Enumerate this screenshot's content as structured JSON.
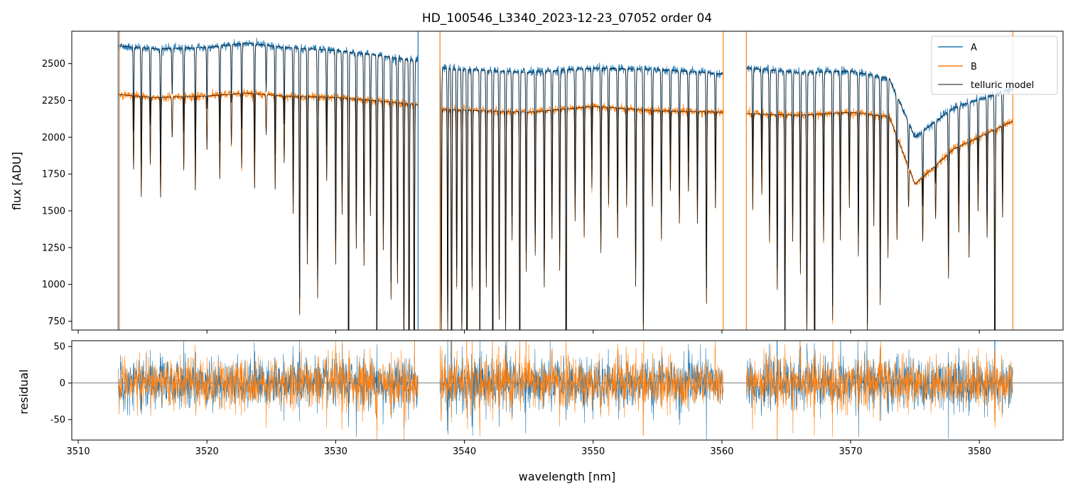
{
  "figure": {
    "title": "HD_100546_L3340_2023-12-23_07052  order 04"
  },
  "colors": {
    "A": "#1f77b4",
    "B": "#ff7f0e",
    "model": "#000000",
    "zero_line": "#333333"
  },
  "chart_data": [
    {
      "type": "line",
      "panel": "top",
      "title": "HD_100546_L3340_2023-12-23_07052  order 04",
      "xlabel": "",
      "ylabel": "flux [ADU]",
      "xlim": [
        3509.5,
        3586.5
      ],
      "ylim": [
        690,
        2720
      ],
      "xticks": [
        3510,
        3520,
        3530,
        3540,
        3550,
        3560,
        3570,
        3580
      ],
      "yticks": [
        750,
        1000,
        1250,
        1500,
        1750,
        2000,
        2250,
        2500
      ],
      "grid": false,
      "legend_position": "top-right",
      "legend": [
        "A",
        "B",
        "telluric model"
      ],
      "segments": [
        [
          3513.1,
          3536.4
        ],
        [
          3538.1,
          3560.1
        ],
        [
          3561.9,
          3582.6
        ]
      ],
      "continuum_A": {
        "x": [
          3513.1,
          3516,
          3520,
          3523,
          3526,
          3530,
          3533,
          3536.4,
          3538.1,
          3545,
          3550,
          3555,
          3560.1,
          3561.9,
          3566,
          3570,
          3573,
          3575,
          3578,
          3582.6
        ],
        "y": [
          2620,
          2600,
          2610,
          2640,
          2610,
          2590,
          2560,
          2520,
          2470,
          2440,
          2470,
          2460,
          2430,
          2470,
          2440,
          2450,
          2400,
          2000,
          2200,
          2330
        ]
      },
      "continuum_B": {
        "x": [
          3513.1,
          3516,
          3520,
          3523,
          3526,
          3530,
          3533,
          3536.4,
          3538.1,
          3545,
          3550,
          3555,
          3560.1,
          3561.9,
          3566,
          3570,
          3573,
          3575,
          3578,
          3582.6
        ],
        "y": [
          2290,
          2270,
          2280,
          2300,
          2280,
          2270,
          2250,
          2220,
          2190,
          2170,
          2210,
          2180,
          2170,
          2160,
          2150,
          2170,
          2140,
          1680,
          1920,
          2110
        ]
      },
      "absorption_lines": {
        "center": [
          3514.3,
          3514.9,
          3515.6,
          3516.4,
          3517.3,
          3518.2,
          3519.1,
          3520.0,
          3521.0,
          3521.9,
          3522.7,
          3523.7,
          3524.6,
          3525.3,
          3526.0,
          3526.7,
          3527.2,
          3527.8,
          3528.6,
          3529.3,
          3530.0,
          3530.5,
          3531.0,
          3531.6,
          3532.2,
          3532.7,
          3533.2,
          3533.7,
          3534.3,
          3534.8,
          3535.3,
          3535.7,
          3536.1,
          3538.2,
          3538.7,
          3539.0,
          3539.4,
          3539.8,
          3540.2,
          3540.6,
          3541.2,
          3541.7,
          3542.2,
          3542.7,
          3543.2,
          3543.7,
          3544.3,
          3544.8,
          3545.5,
          3546.2,
          3546.8,
          3547.4,
          3547.9,
          3548.6,
          3549.3,
          3549.9,
          3550.6,
          3551.2,
          3551.9,
          3552.6,
          3553.3,
          3553.9,
          3554.6,
          3555.3,
          3556.0,
          3556.7,
          3557.4,
          3558.1,
          3558.8,
          3559.5,
          3562.4,
          3563.1,
          3563.7,
          3564.3,
          3564.9,
          3565.5,
          3566.1,
          3566.6,
          3567.2,
          3567.9,
          3568.6,
          3569.2,
          3569.9,
          3570.6,
          3571.3,
          3571.8,
          3572.3,
          3572.9,
          3573.6,
          3574.5,
          3575.6,
          3576.6,
          3577.6,
          3578.4,
          3579.2,
          3579.9,
          3580.6,
          3581.2,
          3581.8
        ],
        "depth": [
          0.22,
          0.3,
          0.2,
          0.3,
          0.12,
          0.22,
          0.28,
          0.16,
          0.25,
          0.15,
          0.22,
          0.28,
          0.12,
          0.28,
          0.2,
          0.35,
          0.65,
          0.5,
          0.6,
          0.25,
          0.5,
          0.35,
          1.0,
          0.45,
          0.5,
          0.35,
          0.8,
          0.45,
          0.6,
          0.55,
          0.75,
          1.0,
          1.0,
          0.7,
          0.7,
          1.0,
          0.55,
          0.7,
          0.95,
          0.55,
          0.75,
          0.55,
          0.9,
          0.65,
          0.7,
          0.4,
          0.85,
          0.5,
          0.45,
          0.55,
          0.4,
          0.5,
          1.0,
          0.35,
          0.4,
          0.25,
          0.45,
          0.3,
          0.4,
          0.3,
          0.55,
          0.7,
          0.3,
          0.4,
          0.25,
          0.35,
          0.25,
          0.35,
          0.6,
          0.3,
          0.3,
          0.25,
          0.4,
          0.55,
          0.75,
          0.4,
          0.5,
          0.7,
          1.0,
          0.4,
          0.65,
          0.4,
          0.3,
          0.45,
          0.7,
          0.35,
          0.6,
          0.45,
          0.35,
          0.15,
          0.25,
          0.2,
          0.45,
          0.3,
          0.4,
          0.25,
          0.35,
          1.0,
          0.3
        ]
      },
      "sharp_spikes": {
        "x": [
          3513.1,
          3513.2,
          3536.4,
          3538.1,
          3560.1,
          3561.9,
          3582.6
        ],
        "series": [
          "A",
          "B",
          "A",
          "B",
          "B",
          "B",
          "B"
        ]
      },
      "series": [
        {
          "name": "A",
          "color": "#1f77b4"
        },
        {
          "name": "B",
          "color": "#ff7f0e"
        },
        {
          "name": "telluric model",
          "color": "#000000"
        }
      ]
    },
    {
      "type": "line",
      "panel": "bottom",
      "xlabel": "wavelength [nm]",
      "ylabel": "residual",
      "xlim": [
        3509.5,
        3586.5
      ],
      "ylim": [
        -78,
        58
      ],
      "xticks": [
        3510,
        3520,
        3530,
        3540,
        3550,
        3560,
        3570,
        3580
      ],
      "yticks": [
        -50,
        0,
        50
      ],
      "grid": false,
      "reference_line_y": 0,
      "noise_sigma": 16,
      "segments": [
        [
          3513.1,
          3536.4
        ],
        [
          3538.1,
          3560.1
        ],
        [
          3561.9,
          3582.6
        ]
      ],
      "series": [
        {
          "name": "A",
          "color": "#1f77b4"
        },
        {
          "name": "B",
          "color": "#ff7f0e"
        }
      ]
    }
  ]
}
